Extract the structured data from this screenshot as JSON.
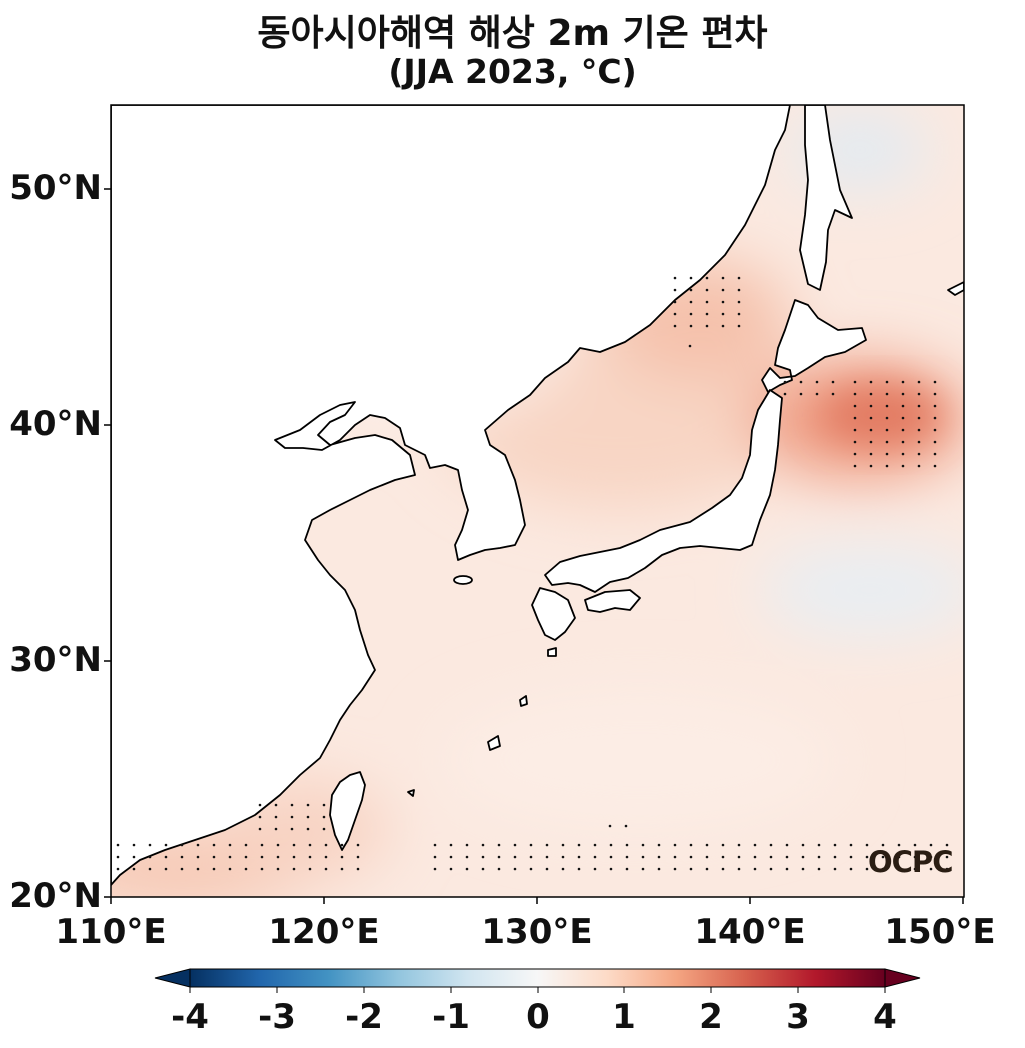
{
  "title": "동아시아해역 해상 2m 기온 편차",
  "subtitle": "(JJA 2023, °C)",
  "watermark": "OCPC",
  "lat_ticks": [
    "50°N",
    "40°N",
    "30°N",
    "20°N"
  ],
  "lon_ticks": [
    "110°E",
    "120°E",
    "130°E",
    "140°E",
    "150°E"
  ],
  "colorbar": {
    "ticks": [
      "-4",
      "-3",
      "-2",
      "-1",
      "0",
      "1",
      "2",
      "3",
      "4"
    ],
    "cmap": "RdBu_r",
    "range": [
      -4,
      4
    ],
    "colors": [
      "#053061",
      "#2166ac",
      "#4393c3",
      "#92c5de",
      "#d1e5f0",
      "#f7f7f7",
      "#fddbc7",
      "#f4a582",
      "#d6604d",
      "#b2182b",
      "#67001f"
    ]
  },
  "map_extent": {
    "lon": [
      110,
      150
    ],
    "lat": [
      20,
      53.5
    ]
  },
  "land_color": "#ffffff",
  "coastline_color": "#000000"
}
